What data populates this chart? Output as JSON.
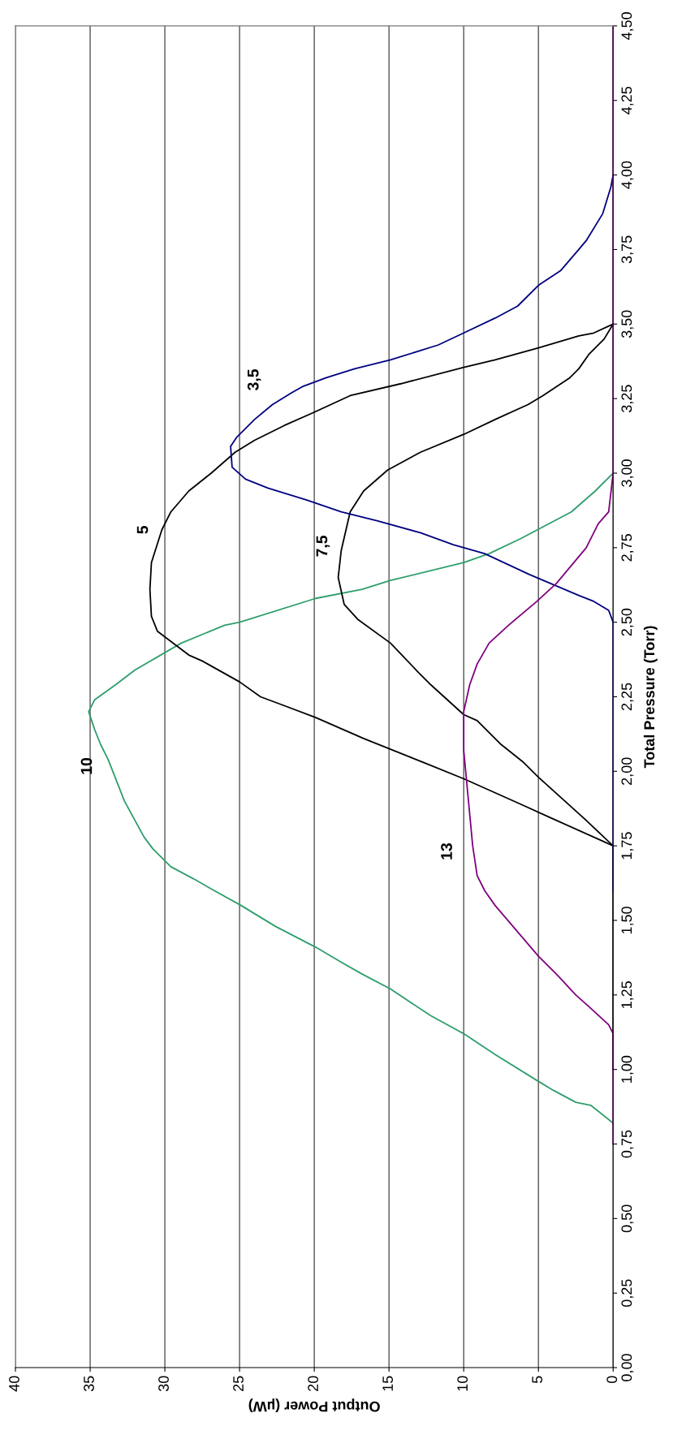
{
  "chart_data": {
    "type": "line",
    "ylabel": "Total Pressure (Torr)",
    "xlabel": "Output Power (µW)",
    "ylim": [
      0,
      4.5
    ],
    "yticks": [
      {
        "value": 0,
        "label": "0,00"
      },
      {
        "value": 0.25,
        "label": "0,25"
      },
      {
        "value": 0.5,
        "label": "0,50"
      },
      {
        "value": 0.75,
        "label": "0,75"
      },
      {
        "value": 1.0,
        "label": "1,00"
      },
      {
        "value": 1.25,
        "label": "1,25"
      },
      {
        "value": 1.5,
        "label": "1,50"
      },
      {
        "value": 1.75,
        "label": "1,75"
      },
      {
        "value": 2.0,
        "label": "2,00"
      },
      {
        "value": 2.25,
        "label": "2,25"
      },
      {
        "value": 2.5,
        "label": "2,50"
      },
      {
        "value": 2.75,
        "label": "2,75"
      },
      {
        "value": 3.0,
        "label": "3,00"
      },
      {
        "value": 3.25,
        "label": "3,25"
      },
      {
        "value": 3.5,
        "label": "3,50"
      },
      {
        "value": 3.75,
        "label": "3,75"
      },
      {
        "value": 4.0,
        "label": "4,00"
      },
      {
        "value": 4.25,
        "label": "4,25"
      },
      {
        "value": 4.5,
        "label": "4,50"
      }
    ],
    "xlim": [
      40,
      0
    ],
    "xticks": [
      0,
      5,
      10,
      15,
      20,
      25,
      30,
      35,
      40
    ],
    "grid": "x",
    "legend": false,
    "marker": "none",
    "line_style": "solid",
    "series": [
      {
        "name": "10",
        "color": "#2e9e6b",
        "values": [
          0.82,
          0.88,
          0.89,
          0.93,
          0.96,
          1.05,
          1.12,
          1.18,
          1.27,
          1.32,
          1.36,
          1.41,
          1.48,
          1.55,
          1.6,
          1.64,
          1.68,
          1.74,
          1.78,
          1.9,
          2.04,
          2.09,
          2.14,
          2.2,
          2.24,
          2.29,
          2.34,
          2.43,
          2.49,
          2.5,
          2.58,
          2.61,
          2.64,
          2.7,
          2.73,
          2.78,
          2.87,
          2.94,
          3.0
        ],
        "x": [
          0,
          1.5,
          2.5,
          4.0,
          5.0,
          7.9,
          10.0,
          12.2,
          14.9,
          16.8,
          18.2,
          19.9,
          22.6,
          24.9,
          26.7,
          28.1,
          29.6,
          30.8,
          31.4,
          32.7,
          33.8,
          34.3,
          34.7,
          35.1,
          34.7,
          33.3,
          32.0,
          28.9,
          26.0,
          25.0,
          19.9,
          16.8,
          14.9,
          10.0,
          8.3,
          6.2,
          2.8,
          1.2,
          0
        ]
      },
      {
        "name": "5",
        "color": "#000000",
        "values": [
          1.0,
          1.75,
          1.84,
          1.89,
          1.975,
          2.03,
          2.11,
          2.18,
          2.22,
          2.25,
          2.3,
          2.37,
          2.39,
          2.47,
          2.52,
          2.61,
          2.7,
          2.81,
          2.87,
          2.94,
          3.0,
          3.07,
          3.11,
          3.16,
          3.2,
          3.26,
          3.3,
          3.355,
          3.38,
          3.42,
          3.46,
          3.47,
          3.5
        ],
        "x": [
          0,
          0,
          4.0,
          6.2,
          10.0,
          12.7,
          16.7,
          19.9,
          22.0,
          23.6,
          25.0,
          27.5,
          28.4,
          30.5,
          30.9,
          31.0,
          30.9,
          30.2,
          29.6,
          28.4,
          26.9,
          25.3,
          24.0,
          22.0,
          20.2,
          17.6,
          14.2,
          10.0,
          7.9,
          5.0,
          2.3,
          1.3,
          0
        ]
      },
      {
        "name": "7,5",
        "color": "#000000",
        "values": [
          1.75,
          1.84,
          1.98,
          2.03,
          2.09,
          2.17,
          2.19,
          2.29,
          2.33,
          2.43,
          2.51,
          2.56,
          2.65,
          2.74,
          2.87,
          2.94,
          3.01,
          3.07,
          3.13,
          3.18,
          3.23,
          3.26,
          3.29,
          3.32,
          3.35,
          3.4,
          3.45,
          3.5
        ],
        "x": [
          0,
          1.9,
          5.0,
          6.0,
          7.5,
          9.1,
          10.0,
          12.2,
          13.0,
          14.9,
          17.1,
          18.0,
          18.4,
          18.2,
          17.6,
          16.7,
          15.1,
          12.9,
          10.0,
          7.9,
          5.7,
          4.7,
          3.8,
          2.9,
          2.3,
          1.6,
          0.6,
          0
        ]
      },
      {
        "name": "3,5",
        "color": "#000080",
        "values": [
          1.6,
          2.5,
          2.54,
          2.57,
          2.59,
          2.66,
          2.73,
          2.76,
          2.8,
          2.84,
          2.87,
          2.91,
          2.95,
          2.98,
          3.02,
          3.09,
          3.12,
          3.18,
          3.23,
          3.27,
          3.29,
          3.32,
          3.35,
          3.38,
          3.43,
          3.47,
          3.52,
          3.56,
          3.63,
          3.68,
          3.75,
          3.78,
          3.87,
          3.96,
          4.0
        ],
        "x": [
          0,
          0,
          0.3,
          1.3,
          2.3,
          5.6,
          8.6,
          10.7,
          12.9,
          15.8,
          18.2,
          20.5,
          23.1,
          24.6,
          25.5,
          25.6,
          25.2,
          24.0,
          22.8,
          21.5,
          20.8,
          19.2,
          17.3,
          14.9,
          11.7,
          10.0,
          7.9,
          6.4,
          5.0,
          3.5,
          2.3,
          1.8,
          0.7,
          0.15,
          0
        ]
      },
      {
        "name": "13",
        "color": "#800080",
        "values": [
          0.75,
          1.12,
          1.15,
          1.21,
          1.25,
          1.32,
          1.38,
          1.55,
          1.6,
          1.65,
          1.75,
          1.91,
          2.07,
          2.2,
          2.29,
          2.36,
          2.43,
          2.49,
          2.57,
          2.63,
          2.75,
          2.83,
          2.87,
          3.0,
          4.5
        ],
        "x": [
          0,
          0,
          0.3,
          1.6,
          2.5,
          3.8,
          5.0,
          7.9,
          8.6,
          9.1,
          9.4,
          9.7,
          10.0,
          10.0,
          9.6,
          9.1,
          8.3,
          7.0,
          5.1,
          3.8,
          1.8,
          1.0,
          0.3,
          0,
          0
        ]
      }
    ]
  }
}
